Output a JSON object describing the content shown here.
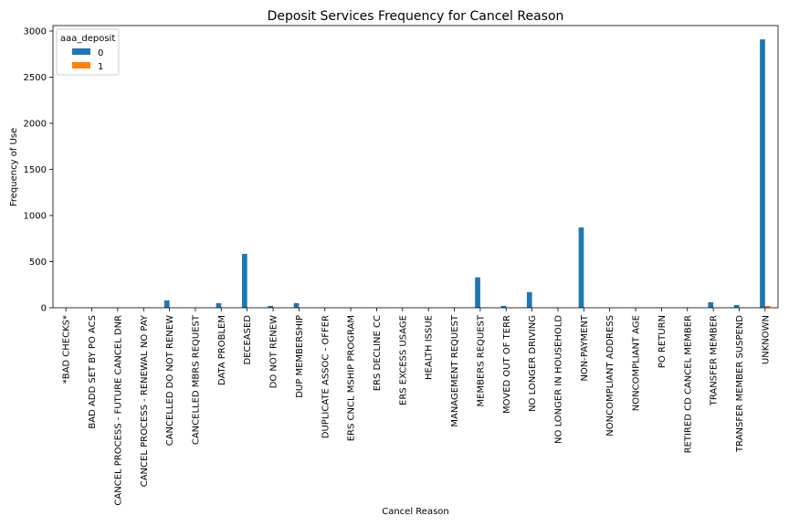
{
  "chart_data": {
    "type": "bar",
    "title": "Deposit Services Frequency for Cancel Reason",
    "xlabel": "Cancel Reason",
    "ylabel": "Frequency of Use",
    "ylim": [
      0,
      3000
    ],
    "yticks": [
      0,
      500,
      1000,
      1500,
      2000,
      2500,
      3000
    ],
    "grid": false,
    "legend": {
      "title": "aaa_deposit",
      "placement": "top-left"
    },
    "categories": [
      "*BAD CHECKS*",
      "BAD ADD SET BY PO ACS",
      "CANCEL PROCESS - FUTURE CANCEL DNR",
      "CANCEL PROCESS - RENEWAL NO PAY",
      "CANCELLED DO NOT RENEW",
      "CANCELLED MBRS REQUEST",
      "DATA PROBLEM",
      "DECEASED",
      "DO NOT RENEW",
      "DUP MEMBERSHIP",
      "DUPLICATE ASSOC - OFFER",
      "ERS CNCL MSHIP PROGRAM",
      "ERS DECLINE CC",
      "ERS EXCESS USAGE",
      "HEALTH ISSUE",
      "MANAGEMENT REQUEST",
      "MEMBERS REQUEST",
      "MOVED OUT OF TERR",
      "NO LONGER DRIVING",
      "NO LONGER IN HOUSEHOLD",
      "NON-PAYMENT",
      "NONCOMPLIANT ADDRESS",
      "NONCOMPLIANT AGE",
      "PO RETURN",
      "RETIRED CD CANCEL MEMBER",
      "TRANSFER MEMBER",
      "TRANSFER MEMBER SUSPEND",
      "UNKNOWN"
    ],
    "series": [
      {
        "name": "0",
        "color": "#1f77b4",
        "values": [
          1,
          1,
          1,
          1,
          80,
          1,
          50,
          585,
          20,
          50,
          1,
          1,
          1,
          1,
          1,
          1,
          330,
          20,
          170,
          1,
          870,
          1,
          1,
          1,
          1,
          60,
          30,
          2910
        ]
      },
      {
        "name": "1",
        "color": "#ff7f0e",
        "values": [
          0,
          0,
          0,
          0,
          0,
          0,
          0,
          0,
          0,
          0,
          0,
          0,
          0,
          0,
          0,
          0,
          0,
          0,
          0,
          0,
          0,
          0,
          0,
          0,
          0,
          0,
          0,
          20
        ]
      }
    ]
  }
}
